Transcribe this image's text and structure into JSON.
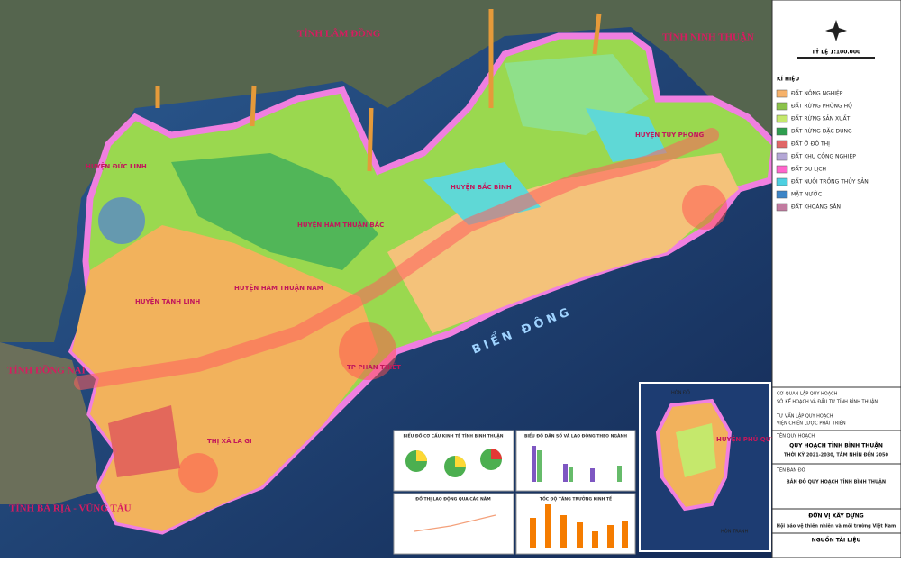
{
  "map": {
    "neighbors": [
      "TỈNH LÂM ĐỒNG",
      "TỈNH NINH THUẬN",
      "TỈNH ĐỒNG NAI",
      "TỈNH BÀ RỊA - VŨNG TÀU"
    ],
    "sea": "BIỂN ĐÔNG",
    "districts": [
      "HUYỆN TUY PHONG",
      "HUYỆN BẮC BÌNH",
      "HUYỆN HÀM THUẬN BẮC",
      "HUYỆN HÀM THUẬN NAM",
      "HUYỆN ĐỨC LINH",
      "HUYỆN TÁNH LINH",
      "TP PHAN THIẾT",
      "THỊ XÃ LA GI"
    ],
    "inset": {
      "label": "HUYỆN PHÚ QUÝ",
      "places": [
        "HÒN ĐỎ",
        "HÒN TRANH"
      ]
    }
  },
  "legend": {
    "scale": "TỶ LỆ 1:100.000",
    "heading": "KÍ HIỆU",
    "items": [
      {
        "label": "ĐẤT NÔNG NGHIỆP",
        "color": "#f6b26b"
      },
      {
        "label": "ĐẤT RỪNG PHÒNG HỘ",
        "color": "#8bc34a"
      },
      {
        "label": "ĐẤT RỪNG SẢN XUẤT",
        "color": "#c5e86c"
      },
      {
        "label": "ĐẤT RỪNG ĐẶC DỤNG",
        "color": "#2e9e4f"
      },
      {
        "label": "ĐẤT Ở ĐÔ THỊ",
        "color": "#e06666"
      },
      {
        "label": "ĐẤT KHU CÔNG NGHIỆP",
        "color": "#b4a7d6"
      },
      {
        "label": "ĐẤT DU LỊCH",
        "color": "#ff66cc"
      },
      {
        "label": "ĐẤT NUÔI TRỒNG THỦY SẢN",
        "color": "#4dd0e1"
      },
      {
        "label": "MẶT NƯỚC",
        "color": "#3d85c6"
      },
      {
        "label": "ĐẤT KHOÁNG SẢN",
        "color": "#c27ba0"
      }
    ]
  },
  "title_block": {
    "agency_label": "CƠ QUAN LẬP QUY HOẠCH",
    "agency": "SỞ KẾ HOẠCH VÀ ĐẦU TƯ TỈNH BÌNH THUẬN",
    "consultant_label": "TƯ VẤN LẬP QUY HOẠCH",
    "consultant": "VIỆN CHIẾN LƯỢC PHÁT TRIỂN",
    "plan_label": "TÊN QUY HOẠCH",
    "plan": "QUY HOẠCH TỈNH BÌNH THUẬN",
    "period": "THỜI KỲ 2021-2030, TẦM NHÌN ĐẾN 2050",
    "map_label": "TÊN BẢN ĐỒ",
    "map_name": "BẢN ĐỒ QUY HOẠCH TỈNH BÌNH THUẬN",
    "builder_label": "ĐƠN VỊ XÂY DỰNG",
    "builder": "Hội bảo vệ thiên nhiên và môi trường Việt Nam",
    "source_label": "NGUỒN TÀI LIỆU"
  },
  "charts": [
    "BIỂU ĐỒ CƠ CẤU KINH TẾ TỈNH BÌNH THUẬN",
    "BIỂU ĐỒ DÂN SỐ VÀ LAO ĐỘNG THEO NGÀNH",
    "ĐỒ THỊ LAO ĐỘNG QUA CÁC NĂM",
    "TỐC ĐỘ TĂNG TRƯỞNG KINH TẾ"
  ]
}
